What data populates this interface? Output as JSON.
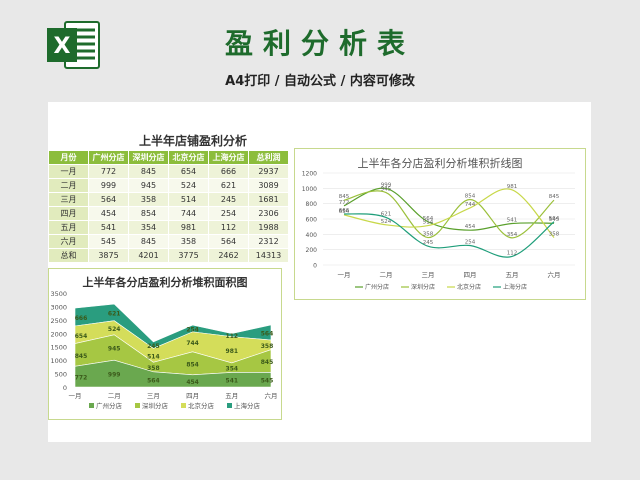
{
  "header": {
    "title": "盈利分析表",
    "subtitle": "A4打印 / 自动公式 / 内容可修改"
  },
  "table": {
    "title": "上半年店铺盈利分析",
    "columns": [
      "月份",
      "广州分店",
      "深圳分店",
      "北京分店",
      "上海分店",
      "总利润"
    ],
    "rows": [
      [
        "一月",
        "772",
        "845",
        "654",
        "666",
        "2937"
      ],
      [
        "二月",
        "999",
        "945",
        "524",
        "621",
        "3089"
      ],
      [
        "三月",
        "564",
        "358",
        "514",
        "245",
        "1681"
      ],
      [
        "四月",
        "454",
        "854",
        "744",
        "254",
        "2306"
      ],
      [
        "五月",
        "541",
        "354",
        "981",
        "112",
        "1988"
      ],
      [
        "六月",
        "545",
        "845",
        "358",
        "564",
        "2312"
      ],
      [
        "总和",
        "3875",
        "4201",
        "3775",
        "2462",
        "14313"
      ]
    ]
  },
  "colors": {
    "guangzhou": "#5aa02c",
    "shenzhen": "#9bc03b",
    "beijing": "#c8d84a",
    "shanghai": "#1f9e7a",
    "header": "#8cbd3c",
    "brand": "#1e6b2c"
  },
  "chart_data": [
    {
      "type": "area",
      "title": "上半年各分店盈利分析堆积面积图",
      "categories": [
        "一月",
        "二月",
        "三月",
        "四月",
        "五月",
        "六月"
      ],
      "ylim": [
        0,
        3500
      ],
      "yticks": [
        "3500",
        "3000",
        "2500",
        "2000",
        "1500",
        "1000",
        "500",
        "0"
      ],
      "stacked": true,
      "legend": "bottom",
      "series": [
        {
          "name": "广州分店",
          "values": [
            772,
            999,
            564,
            454,
            541,
            545
          ]
        },
        {
          "name": "深圳分店",
          "values": [
            845,
            945,
            358,
            854,
            354,
            845
          ]
        },
        {
          "name": "北京分店",
          "values": [
            654,
            524,
            514,
            744,
            981,
            358
          ]
        },
        {
          "name": "上海分店",
          "values": [
            666,
            621,
            245,
            254,
            112,
            564
          ]
        }
      ]
    },
    {
      "type": "line",
      "title": "上半年各分店盈利分析堆积折线图",
      "categories": [
        "一月",
        "二月",
        "三月",
        "四月",
        "五月",
        "六月"
      ],
      "ylim": [
        0,
        1200
      ],
      "yticks": [
        "1200",
        "1000",
        "800",
        "600",
        "400",
        "200",
        "0"
      ],
      "grid": true,
      "legend": "bottom",
      "series": [
        {
          "name": "广州分店",
          "values": [
            772,
            999,
            564,
            454,
            541,
            545
          ]
        },
        {
          "name": "深圳分店",
          "values": [
            845,
            945,
            358,
            854,
            354,
            845
          ]
        },
        {
          "name": "北京分店",
          "values": [
            654,
            524,
            514,
            744,
            981,
            358
          ]
        },
        {
          "name": "上海分店",
          "values": [
            666,
            621,
            245,
            254,
            112,
            564
          ]
        }
      ]
    }
  ]
}
